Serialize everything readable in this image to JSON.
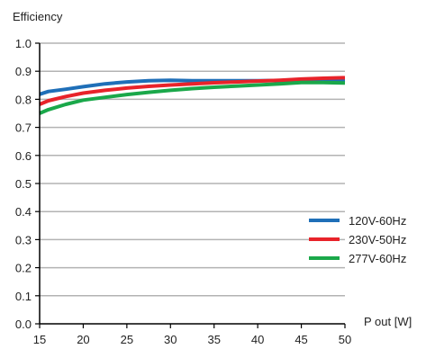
{
  "chart_data": {
    "type": "line",
    "title": "",
    "ylabel": "Efficiency",
    "xlabel": "P out [W]",
    "xlim": [
      15,
      50
    ],
    "ylim": [
      0.0,
      1.0
    ],
    "xticks": [
      "15",
      "20",
      "25",
      "30",
      "35",
      "40",
      "45",
      "50"
    ],
    "yticks": [
      "0.0",
      "0.1",
      "0.2",
      "0.3",
      "0.4",
      "0.5",
      "0.6",
      "0.7",
      "0.8",
      "0.9",
      "1.0"
    ],
    "grid": "horizontal",
    "legend_position": "bottom-right",
    "series": [
      {
        "name": "120V-60Hz",
        "color": "#1f6fb8",
        "x": [
          15,
          16,
          18,
          20,
          22.5,
          25,
          27.5,
          30,
          32.5,
          35,
          37.5,
          40,
          42.5,
          45,
          47.5,
          50
        ],
        "y": [
          0.818,
          0.828,
          0.836,
          0.845,
          0.855,
          0.862,
          0.866,
          0.868,
          0.866,
          0.866,
          0.866,
          0.866,
          0.867,
          0.867,
          0.867,
          0.868
        ]
      },
      {
        "name": "230V-50Hz",
        "color": "#e8232a",
        "x": [
          15,
          16,
          18,
          20,
          22.5,
          25,
          27.5,
          30,
          32.5,
          35,
          37.5,
          40,
          42.5,
          45,
          47.5,
          50
        ],
        "y": [
          0.782,
          0.795,
          0.81,
          0.822,
          0.832,
          0.84,
          0.846,
          0.851,
          0.855,
          0.859,
          0.862,
          0.865,
          0.868,
          0.872,
          0.875,
          0.877
        ]
      },
      {
        "name": "277V-60Hz",
        "color": "#1aa84a",
        "x": [
          15,
          16,
          18,
          20,
          22.5,
          25,
          27.5,
          30,
          32.5,
          35,
          37.5,
          40,
          42.5,
          45,
          47.5,
          50
        ],
        "y": [
          0.75,
          0.763,
          0.782,
          0.797,
          0.807,
          0.817,
          0.825,
          0.832,
          0.838,
          0.843,
          0.847,
          0.851,
          0.855,
          0.86,
          0.86,
          0.858
        ]
      }
    ]
  }
}
